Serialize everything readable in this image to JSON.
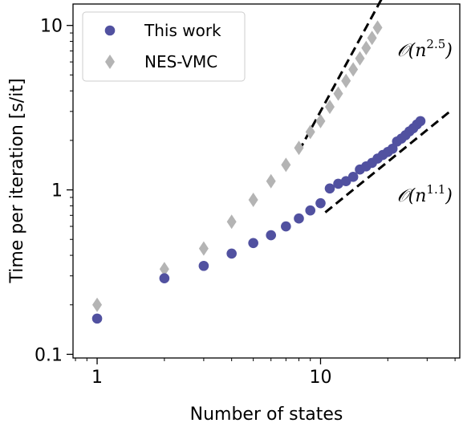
{
  "chart_data": {
    "type": "scatter",
    "xlabel": "Number of states",
    "ylabel": "Time per iteration [s/it]",
    "xscale": "log",
    "yscale": "log",
    "xlim": [
      0.78,
      42
    ],
    "ylim": [
      0.095,
      13.5
    ],
    "x_ticks": [
      1,
      10
    ],
    "x_tick_labels": [
      "1",
      "10"
    ],
    "y_ticks": [
      0.1,
      1,
      10
    ],
    "y_tick_labels": [
      "0.1",
      "1",
      "10"
    ],
    "grid": false,
    "legend_position": "top-left",
    "series": [
      {
        "name": "This work",
        "marker": "circle",
        "color": "#5151a0",
        "x": [
          1,
          2,
          3,
          4,
          5,
          6,
          7,
          8,
          9,
          10,
          11,
          12,
          13,
          14,
          15,
          16,
          17,
          18,
          19,
          20,
          21,
          22,
          23,
          24,
          25,
          26,
          27,
          28
        ],
        "y": [
          0.165,
          0.29,
          0.345,
          0.41,
          0.475,
          0.53,
          0.6,
          0.67,
          0.75,
          0.83,
          1.02,
          1.09,
          1.13,
          1.2,
          1.33,
          1.39,
          1.46,
          1.55,
          1.63,
          1.7,
          1.78,
          1.97,
          2.05,
          2.15,
          2.27,
          2.37,
          2.5,
          2.62
        ]
      },
      {
        "name": "NES-VMC",
        "marker": "diamond",
        "color": "#b4b4b4",
        "x": [
          1,
          2,
          3,
          4,
          5,
          6,
          7,
          8,
          9,
          10,
          11,
          12,
          13,
          14,
          15,
          16,
          17,
          18
        ],
        "y": [
          0.2,
          0.33,
          0.44,
          0.64,
          0.87,
          1.13,
          1.42,
          1.8,
          2.25,
          2.62,
          3.2,
          3.85,
          4.6,
          5.4,
          6.3,
          7.3,
          8.4,
          9.7
        ]
      }
    ],
    "fits": [
      {
        "label": "𝒪(n²·⁵)",
        "exponent": 2.5,
        "x_range": [
          8,
          19.5
        ],
        "y_at_start": 1.72
      },
      {
        "label": "𝒪(n¹·¹)",
        "exponent": 1.1,
        "x_range": [
          10.5,
          38
        ],
        "y_at_start": 0.73
      }
    ],
    "annotations": [
      {
        "text": "𝒪(n",
        "superscript": "2.5",
        "close": ")",
        "x": 22,
        "y": 6.5
      },
      {
        "text": "𝒪(n",
        "superscript": "1.1",
        "close": ")",
        "x": 22,
        "y": 0.85
      }
    ],
    "fit_line_color": "#000000"
  }
}
